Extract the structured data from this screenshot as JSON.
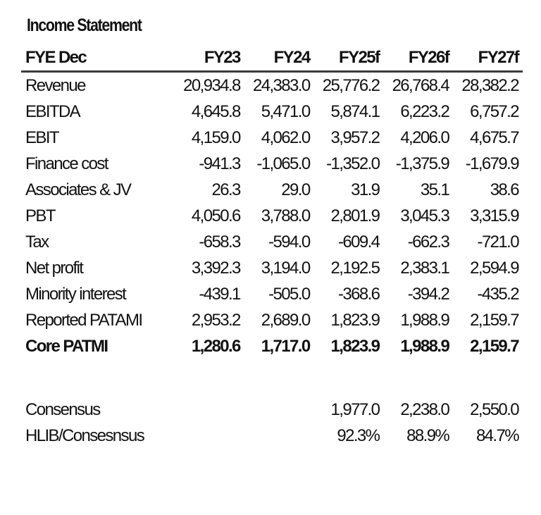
{
  "title": "Income Statement",
  "header": {
    "label": "FYE Dec",
    "years": [
      "FY23",
      "FY24",
      "FY25f",
      "FY26f",
      "FY27f"
    ]
  },
  "rows": [
    {
      "label": "Revenue",
      "values": [
        "20,934.8",
        "24,383.0",
        "25,776.2",
        "26,768.4",
        "28,382.2"
      ]
    },
    {
      "label": "EBITDA",
      "values": [
        "4,645.8",
        "5,471.0",
        "5,874.1",
        "6,223.2",
        "6,757.2"
      ]
    },
    {
      "label": "EBIT",
      "values": [
        "4,159.0",
        "4,062.0",
        "3,957.2",
        "4,206.0",
        "4,675.7"
      ]
    },
    {
      "label": "Finance cost",
      "values": [
        "-941.3",
        "-1,065.0",
        "-1,352.0",
        "-1,375.9",
        "-1,679.9"
      ]
    },
    {
      "label": "Associates & JV",
      "values": [
        "26.3",
        "29.0",
        "31.9",
        "35.1",
        "38.6"
      ]
    },
    {
      "label": "PBT",
      "values": [
        "4,050.6",
        "3,788.0",
        "2,801.9",
        "3,045.3",
        "3,315.9"
      ]
    },
    {
      "label": "Tax",
      "values": [
        "-658.3",
        "-594.0",
        "-609.4",
        "-662.3",
        "-721.0"
      ]
    },
    {
      "label": "Net profit",
      "values": [
        "3,392.3",
        "3,194.0",
        "2,192.5",
        "2,383.1",
        "2,594.9"
      ]
    },
    {
      "label": "Minority interest",
      "values": [
        "-439.1",
        "-505.0",
        "-368.6",
        "-394.2",
        "-435.2"
      ]
    },
    {
      "label": "Reported PATAMI",
      "values": [
        "2,953.2",
        "2,689.0",
        "1,823.9",
        "1,988.9",
        "2,159.7"
      ]
    },
    {
      "label": "Core PATMI",
      "values": [
        "1,280.6",
        "1,717.0",
        "1,823.9",
        "1,988.9",
        "2,159.7"
      ]
    }
  ],
  "consensus": [
    {
      "label": "Consensus",
      "values": [
        "",
        "",
        "1,977.0",
        "2,238.0",
        "2,550.0"
      ]
    },
    {
      "label": "HLIB/Consesnsus",
      "values": [
        "",
        "",
        "92.3%",
        "88.9%",
        "84.7%"
      ]
    }
  ]
}
